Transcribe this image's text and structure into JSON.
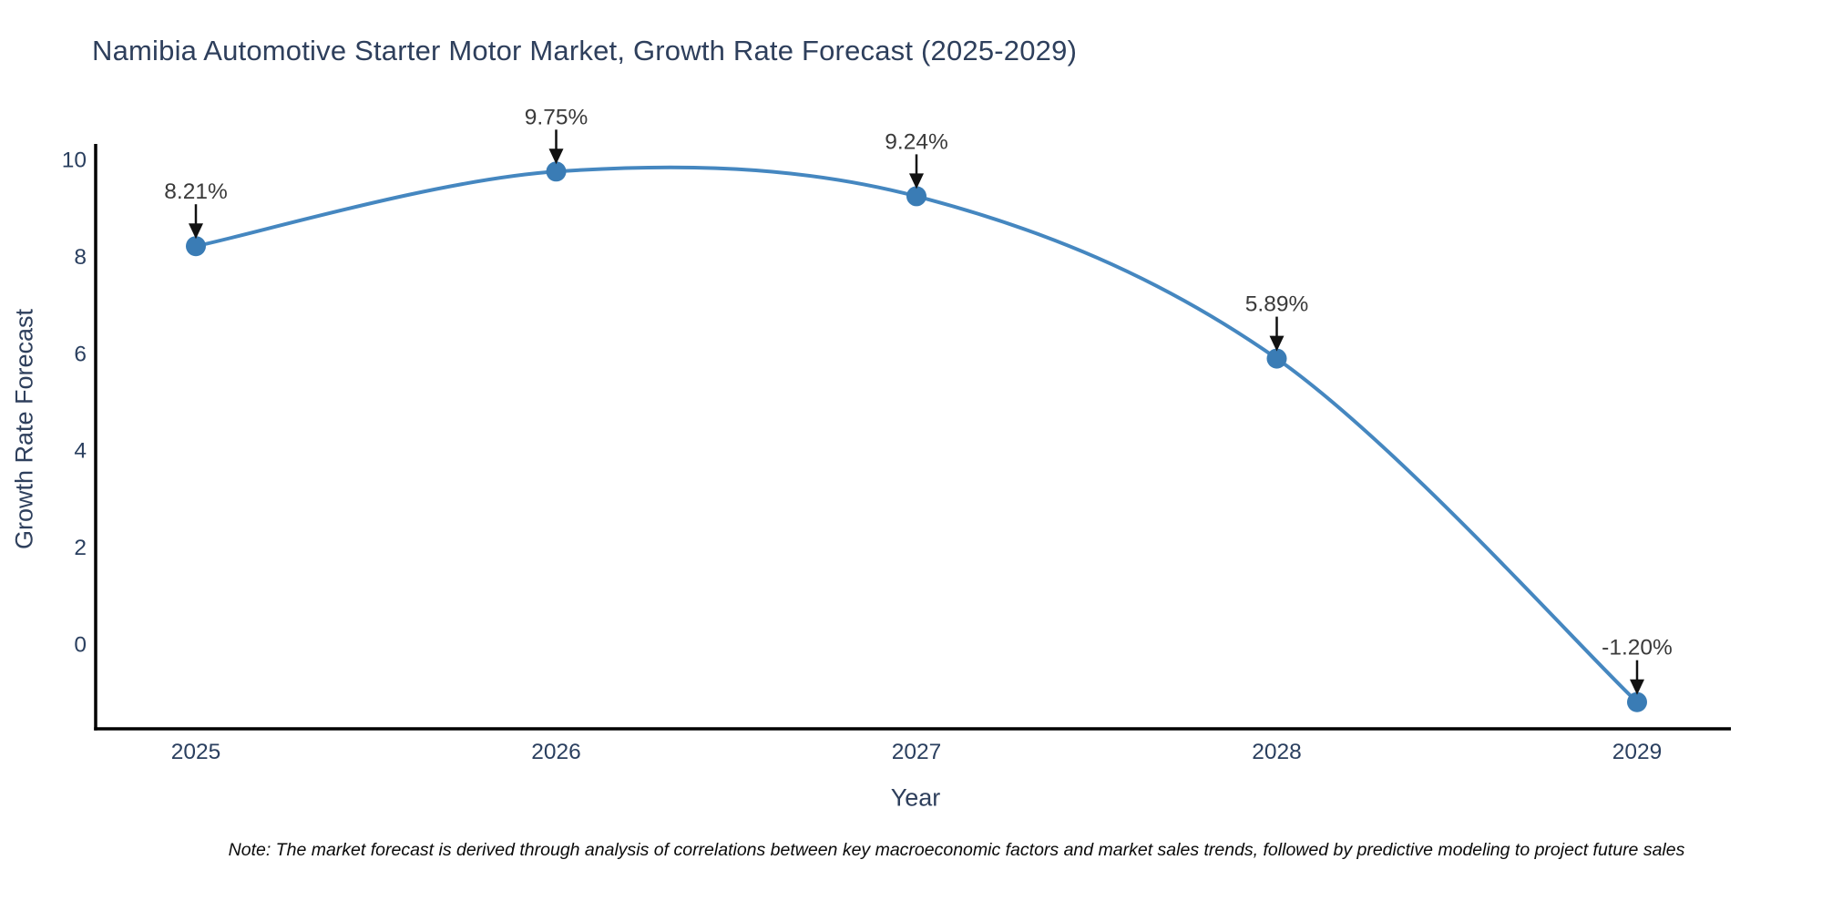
{
  "chart_data": {
    "type": "line",
    "line_shape": "spline",
    "title": "Namibia Automotive Starter Motor Market, Growth Rate Forecast (2025-2029)",
    "xlabel": "Year",
    "ylabel": "Growth Rate Forecast",
    "categories": [
      "2025",
      "2026",
      "2027",
      "2028",
      "2029"
    ],
    "values": [
      8.21,
      9.75,
      9.24,
      5.89,
      -1.2
    ],
    "point_labels": [
      "8.21%",
      "9.75%",
      "9.24%",
      "5.89%",
      "-1.20%"
    ],
    "ylim": [
      -1.75,
      10.32
    ],
    "yticks": [
      0,
      2,
      4,
      6,
      8,
      10
    ],
    "grid": false,
    "legend": "none",
    "colors": {
      "line": "#4587c0",
      "marker": "#3a7cb5",
      "axis": "#000000",
      "tick_labels": "#2a3f5f",
      "axis_titles": "#2e3f5c",
      "title": "#2e3f5c",
      "annotation_text": "#3a3a3a",
      "annotation_arrow": "#111111",
      "background": "#ffffff"
    }
  },
  "note": "Note: The market forecast is derived through analysis of correlations between key macroeconomic factors and market sales trends, followed by predictive modeling to project future sales"
}
